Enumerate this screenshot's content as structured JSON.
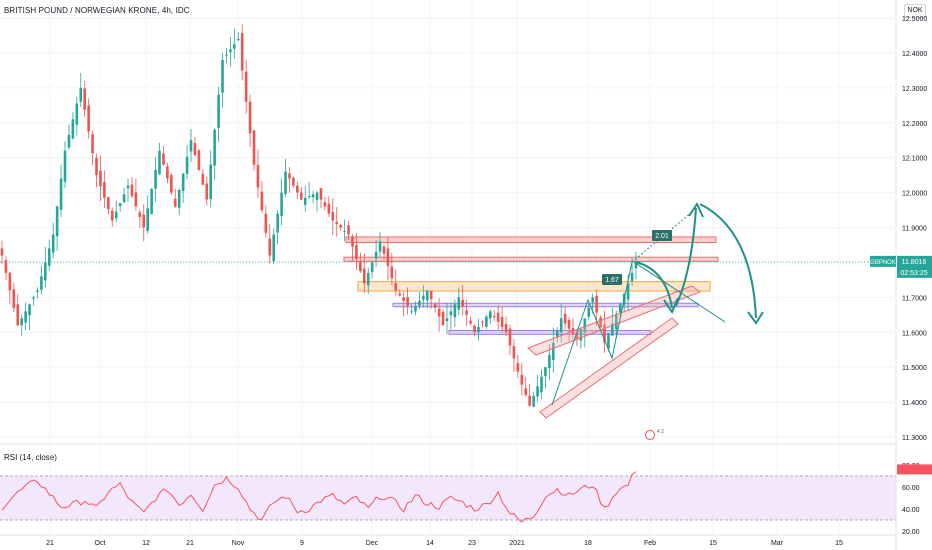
{
  "header": {
    "title": "BRITISH POUND / NORWEGIAN KRONE, 4h, IDC",
    "currency": "NOK"
  },
  "price_tag": {
    "symbol": "GBPNOK",
    "value": "11.8016",
    "countdown": "02:53:25"
  },
  "rsi_panel": {
    "title": "RSI (14, close)"
  },
  "annotations": {
    "fib_a": "1.67",
    "fib_b": "2.01",
    "ideas_badge": "4 2"
  },
  "colors": {
    "bull": "#26a69a",
    "bear": "#ef5350",
    "rsi_line": "#f7525f",
    "rsi_band": "#e9d5f7",
    "arrow": "#1f9187",
    "pink_band": "#f4a7a3",
    "orange_band": "#f9d49b",
    "purple_band": "#c7b4f0",
    "price_line": "#26a69a"
  },
  "chart_data": [
    {
      "type": "candlestick",
      "title": "BRITISH POUND / NORWEGIAN KRONE, 4h, IDC",
      "ylim": [
        11.28,
        12.55
      ],
      "y_ticks": [
        "12.5000",
        "12.4000",
        "12.3000",
        "12.2000",
        "12.1000",
        "12.0000",
        "11.9000",
        "11.8000",
        "11.7000",
        "11.6000",
        "11.5000",
        "11.4000",
        "11.3000"
      ],
      "x_ticks": [
        "21",
        "Oct",
        "12",
        "21",
        "Nov",
        "9",
        "Dec",
        "14",
        "23",
        "2021",
        "18",
        "Feb",
        "15",
        "Mar",
        "15"
      ],
      "last_price": 11.8016,
      "anchors": [
        [
          0,
          11.82
        ],
        [
          4,
          11.62
        ],
        [
          9,
          11.72
        ],
        [
          13,
          11.88
        ],
        [
          16,
          12.12
        ],
        [
          20,
          12.3
        ],
        [
          24,
          12.05
        ],
        [
          28,
          11.92
        ],
        [
          32,
          12.02
        ],
        [
          36,
          11.9
        ],
        [
          40,
          12.12
        ],
        [
          44,
          11.96
        ],
        [
          48,
          12.15
        ],
        [
          52,
          11.98
        ],
        [
          56,
          12.38
        ],
        [
          60,
          12.44
        ],
        [
          64,
          12.08
        ],
        [
          68,
          11.82
        ],
        [
          72,
          12.06
        ],
        [
          76,
          11.98
        ],
        [
          80,
          12.0
        ],
        [
          84,
          11.92
        ],
        [
          88,
          11.88
        ],
        [
          92,
          11.74
        ],
        [
          96,
          11.86
        ],
        [
          100,
          11.72
        ],
        [
          104,
          11.66
        ],
        [
          108,
          11.72
        ],
        [
          112,
          11.62
        ],
        [
          116,
          11.7
        ],
        [
          120,
          11.6
        ],
        [
          124,
          11.66
        ],
        [
          128,
          11.6
        ],
        [
          132,
          11.45
        ],
        [
          134,
          11.39
        ],
        [
          138,
          11.5
        ],
        [
          142,
          11.64
        ],
        [
          146,
          11.58
        ],
        [
          150,
          11.7
        ],
        [
          153,
          11.57
        ],
        [
          157,
          11.68
        ],
        [
          161,
          11.8
        ]
      ],
      "rsi": {
        "ylim": [
          20,
          80
        ],
        "y_ticks": [
          "80.00",
          "60.00",
          "40.00",
          "20.00"
        ],
        "band": [
          30,
          70
        ],
        "anchors": [
          [
            0,
            42
          ],
          [
            3,
            52
          ],
          [
            6,
            60
          ],
          [
            9,
            66
          ],
          [
            12,
            54
          ],
          [
            15,
            42
          ],
          [
            18,
            44
          ],
          [
            21,
            48
          ],
          [
            24,
            40
          ],
          [
            27,
            56
          ],
          [
            30,
            62
          ],
          [
            33,
            46
          ],
          [
            36,
            36
          ],
          [
            39,
            50
          ],
          [
            42,
            58
          ],
          [
            45,
            44
          ],
          [
            48,
            54
          ],
          [
            51,
            40
          ],
          [
            54,
            62
          ],
          [
            57,
            68
          ],
          [
            60,
            60
          ],
          [
            63,
            40
          ],
          [
            66,
            30
          ],
          [
            69,
            46
          ],
          [
            72,
            52
          ],
          [
            75,
            38
          ],
          [
            78,
            40
          ],
          [
            81,
            48
          ],
          [
            84,
            52
          ],
          [
            87,
            44
          ],
          [
            90,
            50
          ],
          [
            93,
            40
          ],
          [
            96,
            52
          ],
          [
            99,
            48
          ],
          [
            102,
            40
          ],
          [
            105,
            52
          ],
          [
            108,
            45
          ],
          [
            111,
            42
          ],
          [
            114,
            50
          ],
          [
            117,
            46
          ],
          [
            120,
            40
          ],
          [
            123,
            44
          ],
          [
            126,
            55
          ],
          [
            129,
            36
          ],
          [
            132,
            28
          ],
          [
            135,
            34
          ],
          [
            138,
            52
          ],
          [
            141,
            58
          ],
          [
            144,
            52
          ],
          [
            147,
            58
          ],
          [
            150,
            62
          ],
          [
            153,
            40
          ],
          [
            156,
            56
          ],
          [
            159,
            62
          ],
          [
            161,
            76
          ]
        ]
      }
    }
  ]
}
